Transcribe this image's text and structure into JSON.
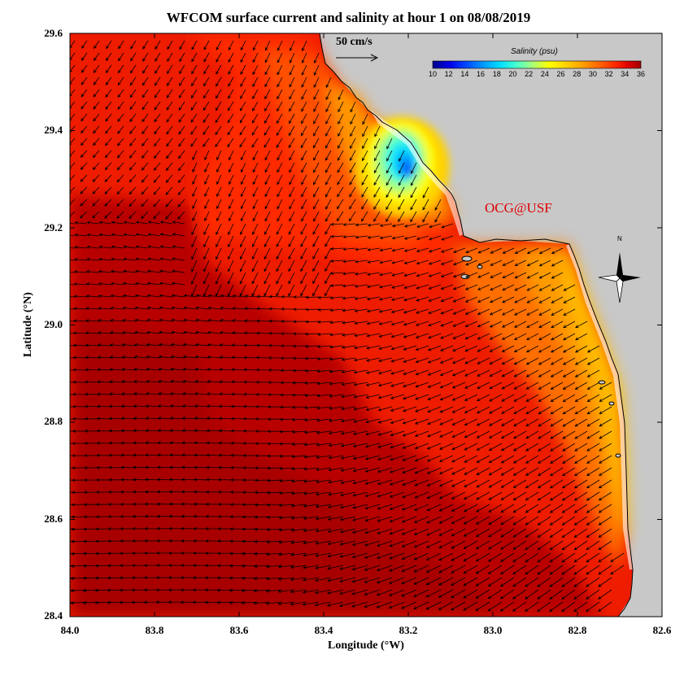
{
  "chart_data": {
    "type": "heatmap",
    "title": "WFCOM surface current and salinity at hour 1 on 08/08/2019",
    "xlabel": "Longitude (°W)",
    "ylabel": "Latitude (°N)",
    "xlim": [
      84.0,
      82.6
    ],
    "ylim": [
      28.4,
      29.6
    ],
    "x_ticks": [
      "84.0",
      "83.8",
      "83.6",
      "83.4",
      "83.2",
      "83.0",
      "82.8",
      "82.6"
    ],
    "y_ticks": [
      "29.6",
      "29.4",
      "29.2",
      "29.0",
      "28.8",
      "28.6",
      "28.4"
    ],
    "field": "surface salinity with current vectors",
    "colorbar": {
      "title": "Salinity (psu)",
      "range": [
        10,
        36
      ],
      "ticks": [
        "10",
        "12",
        "14",
        "16",
        "18",
        "20",
        "22",
        "24",
        "26",
        "28",
        "30",
        "32",
        "34",
        "36"
      ],
      "colors": [
        "#00008c",
        "#0000e6",
        "#0046ff",
        "#0096ff",
        "#00dcff",
        "#46ffd2",
        "#aaff78",
        "#ffff00",
        "#ffd200",
        "#ffa000",
        "#ff6400",
        "#ff2800",
        "#dc0000",
        "#a00000"
      ]
    },
    "vector_scale": {
      "label": "50 cm/s",
      "speed_cm_s": 50
    },
    "salinity_regions": [
      {
        "name": "offshore",
        "salinity_psu": 34.5
      },
      {
        "name": "central shelf",
        "salinity_psu": 33.5
      },
      {
        "name": "nearshore band",
        "salinity_psu": 30.5
      },
      {
        "name": "river plume core",
        "salinity_psu": 12
      }
    ],
    "flow_summary": "predominantly southwestward to westward currents, southward near the northern coast",
    "annotation": "OCG@USF",
    "north_arrow_label": "N"
  },
  "colors": {
    "land": "#c8c8c8",
    "axis": "#000000",
    "vector": "#000000",
    "credit_text": "#e00000"
  }
}
